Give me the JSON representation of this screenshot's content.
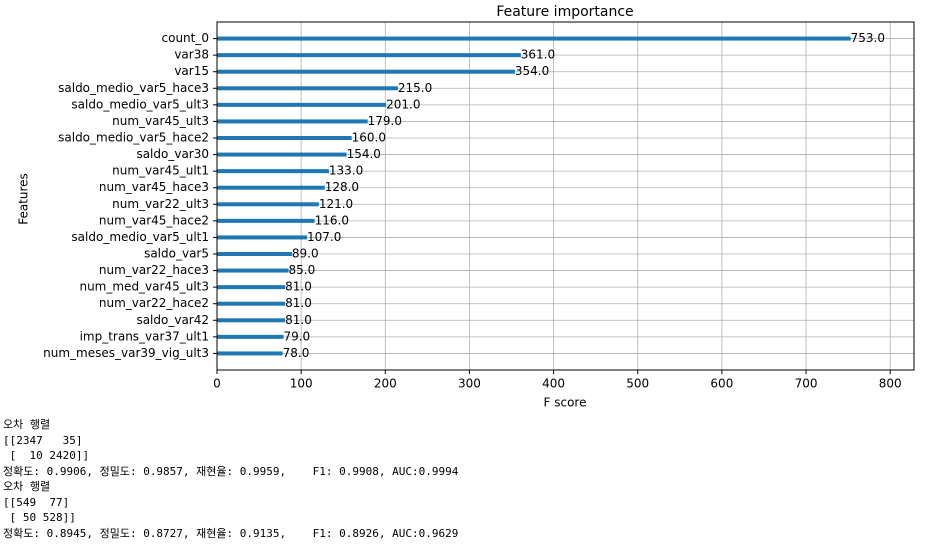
{
  "chart_data": {
    "type": "barh",
    "title": "Feature importance",
    "xlabel": "F score",
    "ylabel": "Features",
    "categories": [
      "count_0",
      "var38",
      "var15",
      "saldo_medio_var5_hace3",
      "saldo_medio_var5_ult3",
      "num_var45_ult3",
      "saldo_medio_var5_hace2",
      "saldo_var30",
      "num_var45_ult1",
      "num_var45_hace3",
      "num_var22_ult3",
      "num_var45_hace2",
      "saldo_medio_var5_ult1",
      "saldo_var5",
      "num_var22_hace3",
      "num_med_var45_ult3",
      "num_var22_hace2",
      "saldo_var42",
      "imp_trans_var37_ult1",
      "num_meses_var39_vig_ult3"
    ],
    "values": [
      753,
      361,
      354,
      215,
      201,
      179,
      160,
      154,
      133,
      128,
      121,
      116,
      107,
      89,
      85,
      81,
      81,
      81,
      79,
      78
    ],
    "value_labels": [
      "753.0",
      "361.0",
      "354.0",
      "215.0",
      "201.0",
      "179.0",
      "160.0",
      "154.0",
      "133.0",
      "128.0",
      "121.0",
      "116.0",
      "107.0",
      "89.0",
      "85.0",
      "81.0",
      "81.0",
      "81.0",
      "79.0",
      "78.0"
    ],
    "color": "#1f77b4",
    "xlim": [
      0,
      828.3
    ],
    "xticks": [
      0,
      100,
      200,
      300,
      400,
      500,
      600,
      700,
      800
    ],
    "grid": true
  },
  "output_lines": [
    "오차 행렬",
    "[[2347   35]",
    " [  10 2420]]",
    "정확도: 0.9906, 정밀도: 0.9857, 재현율: 0.9959,    F1: 0.9908, AUC:0.9994",
    "오차 행렬",
    "[[549  77]",
    " [ 50 528]]",
    "정확도: 0.8945, 정밀도: 0.8727, 재현율: 0.9135,    F1: 0.8926, AUC:0.9629"
  ]
}
